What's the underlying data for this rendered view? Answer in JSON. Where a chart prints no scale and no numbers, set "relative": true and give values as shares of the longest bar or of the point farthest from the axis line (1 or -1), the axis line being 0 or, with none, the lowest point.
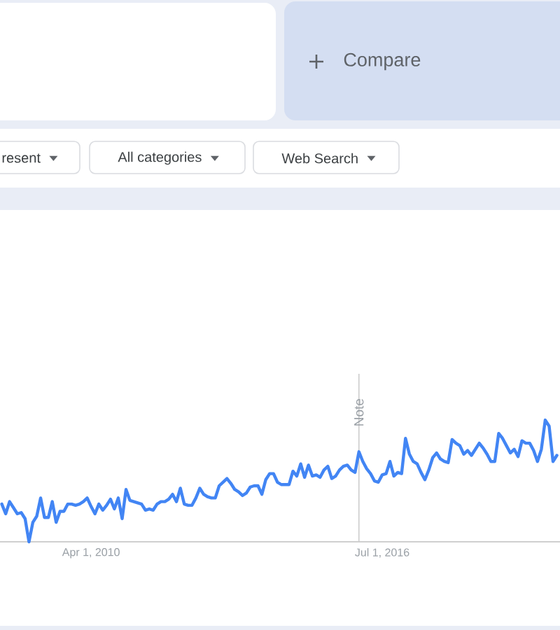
{
  "chart_data": {
    "type": "line",
    "relative": true,
    "x": [
      "2008-05",
      "2008-06",
      "2008-07",
      "2008-08",
      "2008-09",
      "2008-10",
      "2008-11",
      "2008-12",
      "2009-01",
      "2009-02",
      "2009-03",
      "2009-04",
      "2009-05",
      "2009-06",
      "2009-07",
      "2009-08",
      "2009-09",
      "2009-10",
      "2009-11",
      "2009-12",
      "2010-01",
      "2010-02",
      "2010-03",
      "2010-04",
      "2010-05",
      "2010-06",
      "2010-07",
      "2010-08",
      "2010-09",
      "2010-10",
      "2010-11",
      "2010-12",
      "2011-01",
      "2011-02",
      "2011-03",
      "2011-04",
      "2011-05",
      "2011-06",
      "2011-07",
      "2011-08",
      "2011-09",
      "2011-10",
      "2011-11",
      "2011-12",
      "2012-01",
      "2012-02",
      "2012-03",
      "2012-04",
      "2012-05",
      "2012-06",
      "2012-07",
      "2012-08",
      "2012-09",
      "2012-10",
      "2012-11",
      "2012-12",
      "2013-01",
      "2013-02",
      "2013-03",
      "2013-04",
      "2013-05",
      "2013-06",
      "2013-07",
      "2013-08",
      "2013-09",
      "2013-10",
      "2013-11",
      "2013-12",
      "2014-01",
      "2014-02",
      "2014-03",
      "2014-04",
      "2014-05",
      "2014-06",
      "2014-07",
      "2014-08",
      "2014-09",
      "2014-10",
      "2014-11",
      "2014-12",
      "2015-01",
      "2015-02",
      "2015-03",
      "2015-04",
      "2015-05",
      "2015-06",
      "2015-07",
      "2015-08",
      "2015-09",
      "2015-10",
      "2015-11",
      "2015-12",
      "2016-01",
      "2016-02",
      "2016-03",
      "2016-04",
      "2016-05",
      "2016-06",
      "2016-07",
      "2016-08",
      "2016-09",
      "2016-10",
      "2016-11",
      "2016-12",
      "2017-01",
      "2017-02",
      "2017-03",
      "2017-04",
      "2017-05",
      "2017-06",
      "2017-07",
      "2017-08",
      "2017-09",
      "2017-10",
      "2017-11",
      "2017-12",
      "2018-01",
      "2018-02",
      "2018-03",
      "2018-04",
      "2018-05",
      "2018-06",
      "2018-07",
      "2018-08",
      "2018-09",
      "2018-10",
      "2018-11",
      "2018-12",
      "2019-01",
      "2019-02",
      "2019-03",
      "2019-04",
      "2019-05",
      "2019-06",
      "2019-07",
      "2019-08",
      "2019-09",
      "2019-10",
      "2019-11",
      "2019-12",
      "2020-01",
      "2020-02",
      "2020-03",
      "2020-04"
    ],
    "values": [
      0.31,
      0.23,
      0.33,
      0.28,
      0.23,
      0.24,
      0.19,
      0.0,
      0.16,
      0.21,
      0.36,
      0.2,
      0.2,
      0.33,
      0.16,
      0.25,
      0.25,
      0.31,
      0.31,
      0.3,
      0.31,
      0.33,
      0.36,
      0.29,
      0.23,
      0.31,
      0.26,
      0.3,
      0.35,
      0.27,
      0.36,
      0.19,
      0.43,
      0.34,
      0.33,
      0.32,
      0.31,
      0.26,
      0.27,
      0.26,
      0.31,
      0.33,
      0.33,
      0.35,
      0.39,
      0.33,
      0.44,
      0.31,
      0.3,
      0.3,
      0.36,
      0.44,
      0.39,
      0.37,
      0.36,
      0.36,
      0.46,
      0.49,
      0.52,
      0.48,
      0.43,
      0.41,
      0.38,
      0.4,
      0.45,
      0.46,
      0.46,
      0.39,
      0.51,
      0.56,
      0.56,
      0.49,
      0.47,
      0.47,
      0.47,
      0.58,
      0.54,
      0.64,
      0.53,
      0.63,
      0.54,
      0.55,
      0.53,
      0.59,
      0.62,
      0.52,
      0.54,
      0.59,
      0.62,
      0.63,
      0.59,
      0.57,
      0.74,
      0.66,
      0.6,
      0.56,
      0.5,
      0.49,
      0.55,
      0.56,
      0.66,
      0.54,
      0.57,
      0.56,
      0.85,
      0.72,
      0.66,
      0.64,
      0.57,
      0.51,
      0.59,
      0.69,
      0.73,
      0.68,
      0.66,
      0.65,
      0.84,
      0.81,
      0.79,
      0.72,
      0.75,
      0.71,
      0.76,
      0.81,
      0.77,
      0.72,
      0.66,
      0.66,
      0.89,
      0.85,
      0.79,
      0.73,
      0.76,
      0.7,
      0.83,
      0.81,
      0.81,
      0.75,
      0.66,
      0.76,
      1.0,
      0.95,
      0.66,
      0.71
    ],
    "color": "#4285f4",
    "xlim": [
      "2008-04-17",
      "2020-04-25"
    ],
    "xticks": [
      {
        "value": "2010-04-01",
        "label": "Apr 1, 2010"
      },
      {
        "value": "2016-07-01",
        "label": "Jul 1, 2016"
      }
    ],
    "tick_labels": "x",
    "ref_lines": [
      {
        "axis": "x",
        "value": "2016-01-01",
        "label": "Note",
        "color": "#cccccc"
      }
    ],
    "annotations": [
      "Compare",
      "resent",
      "All categories",
      "Web Search"
    ]
  }
}
